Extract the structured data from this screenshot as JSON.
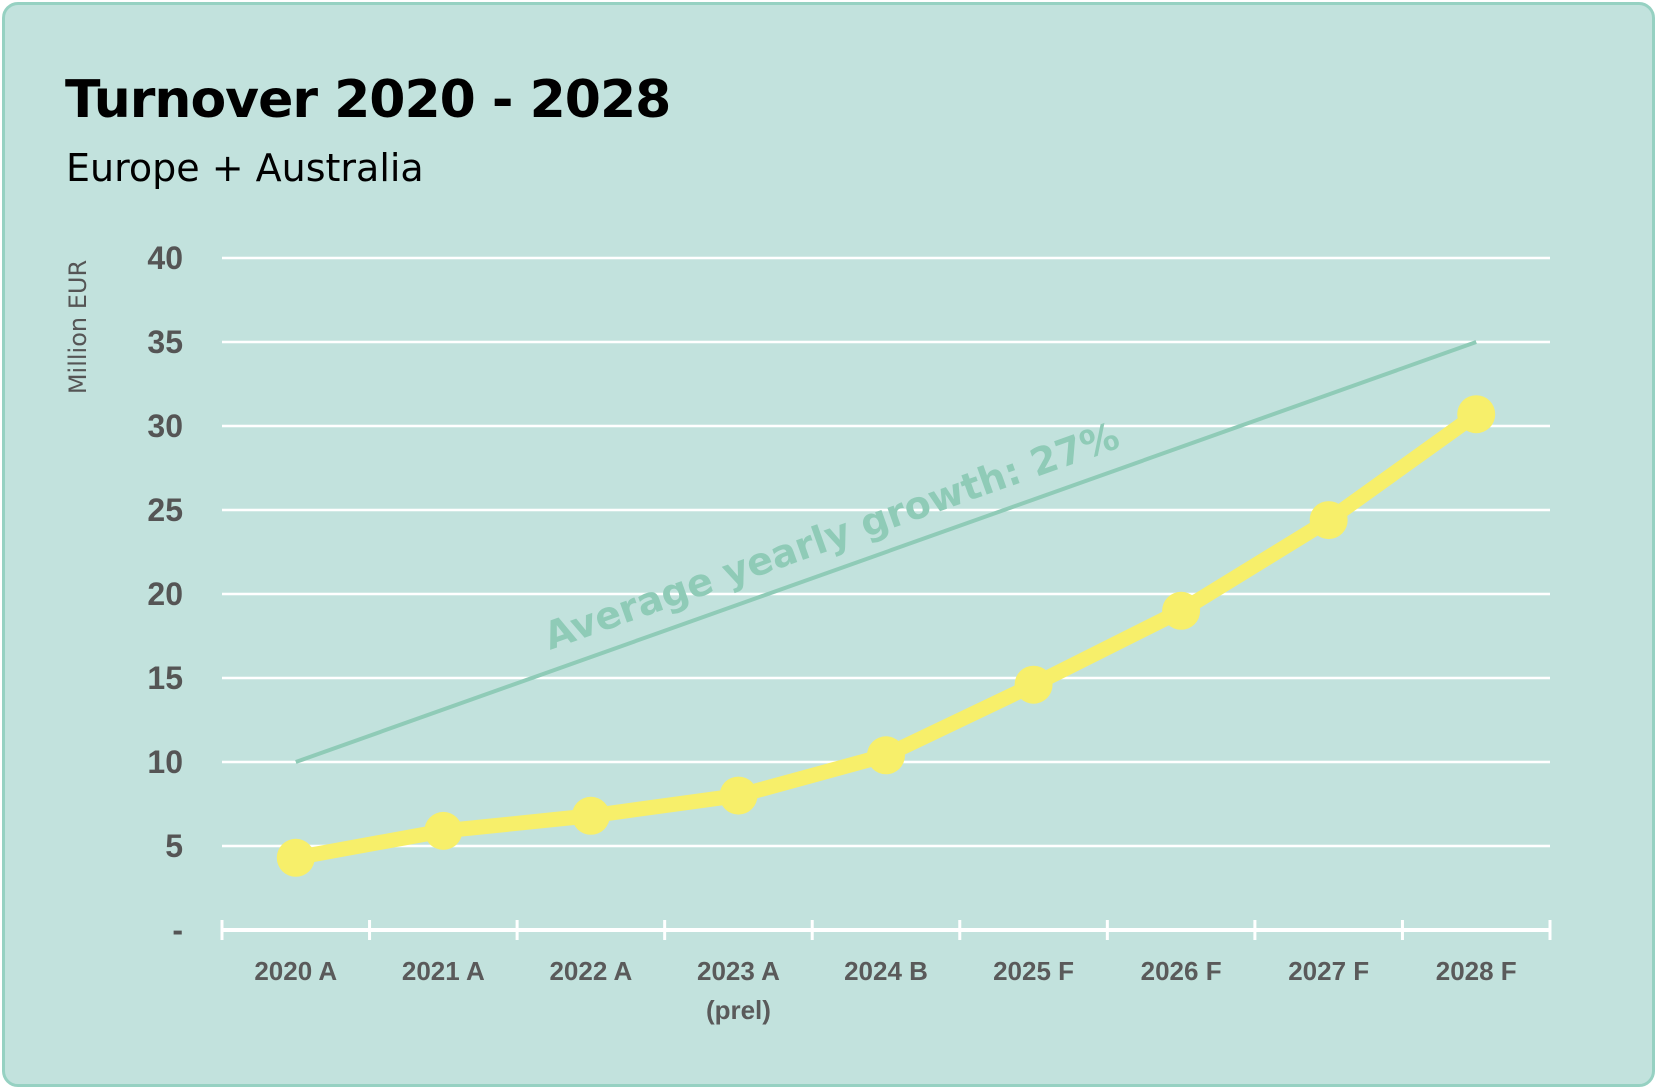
{
  "chart_data": {
    "type": "line",
    "title": "Turnover 2020 - 2028",
    "subtitle": "Europe + Australia",
    "ylabel": "Million EUR",
    "ylim": [
      0,
      40
    ],
    "yticks": [
      0,
      5,
      10,
      15,
      20,
      25,
      30,
      35,
      40
    ],
    "ytick_labels": [
      "-",
      "5",
      "10",
      "15",
      "20",
      "25",
      "30",
      "35",
      "40"
    ],
    "categories": [
      "2020 A",
      "2021 A",
      "2022 A",
      "2023 A",
      "2024 B",
      "2025 F",
      "2026 F",
      "2027 F",
      "2028 F"
    ],
    "category_sublabels": [
      "",
      "",
      "",
      "(prel)",
      "",
      "",
      "",
      "",
      ""
    ],
    "series": [
      {
        "values": [
          4.3,
          5.9,
          6.8,
          8.0,
          10.4,
          14.6,
          19.0,
          24.4,
          30.7
        ],
        "color": "#f7ef6a"
      }
    ],
    "trend": {
      "label": "Average yearly growth: 27%",
      "start": {
        "category": "2020 A",
        "value": 10
      },
      "end": {
        "category": "2028 F",
        "value": 35
      },
      "color": "#8fcbb7"
    },
    "grid": true,
    "legend": "none",
    "colors": {
      "background": "#c2e2dd",
      "border": "#96d1c2",
      "gridline": "#ffffff",
      "axis": "#ffffff"
    }
  }
}
